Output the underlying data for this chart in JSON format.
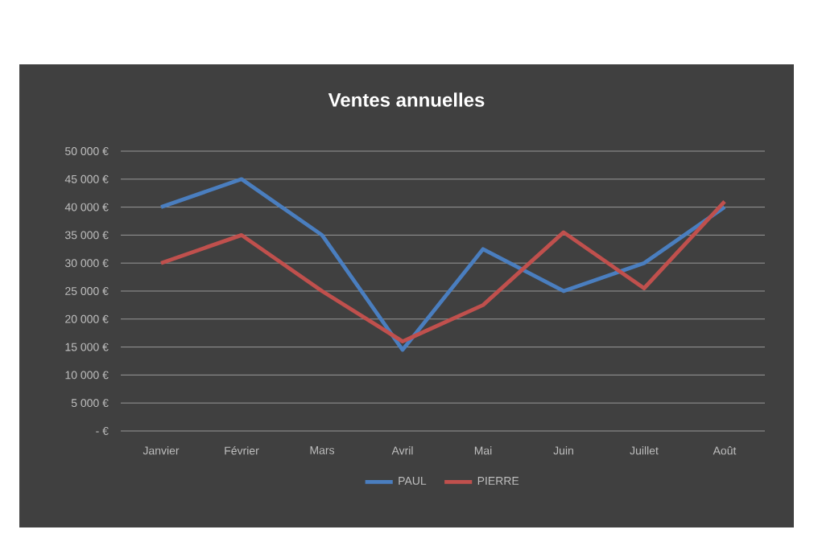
{
  "chart_data": {
    "type": "line",
    "title": "Ventes annuelles",
    "categories": [
      "Janvier",
      "Février",
      "Mars",
      "Avril",
      "Mai",
      "Juin",
      "Juillet",
      "Août"
    ],
    "series": [
      {
        "name": "PAUL",
        "color": "#4a7ebf",
        "values": [
          40000,
          45000,
          35000,
          14500,
          32500,
          25000,
          30000,
          40000
        ]
      },
      {
        "name": "PIERRE",
        "color": "#c0504d",
        "values": [
          30000,
          35000,
          25000,
          16000,
          22500,
          35500,
          25500,
          41000
        ]
      }
    ],
    "ylim": [
      0,
      50000
    ],
    "yticks": [
      {
        "value": 0,
        "label": "-   €"
      },
      {
        "value": 5000,
        "label": "5 000 €"
      },
      {
        "value": 10000,
        "label": "10 000 €"
      },
      {
        "value": 15000,
        "label": "15 000 €"
      },
      {
        "value": 20000,
        "label": "20 000 €"
      },
      {
        "value": 25000,
        "label": "25 000 €"
      },
      {
        "value": 30000,
        "label": "30 000 €"
      },
      {
        "value": 35000,
        "label": "35 000 €"
      },
      {
        "value": 40000,
        "label": "40 000 €"
      },
      {
        "value": 45000,
        "label": "45 000 €"
      },
      {
        "value": 50000,
        "label": "50 000 €"
      }
    ],
    "grid": "y",
    "legend": "bottom",
    "marker": "none",
    "line_style": "solid"
  }
}
